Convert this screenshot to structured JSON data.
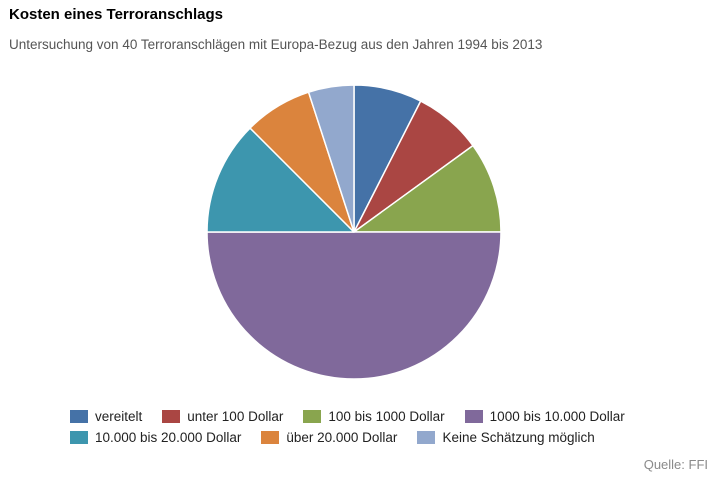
{
  "title": "Kosten eines Terroranschlags",
  "subtitle": "Untersuchung von 40 Terroranschlägen mit Europa-Bezug aus den Jahren 1994 bis 2013",
  "source": "Quelle: FFI",
  "chart_data": {
    "type": "pie",
    "title": "Kosten eines Terroranschlags",
    "subtitle": "Untersuchung von 40 Terroranschlägen mit Europa-Bezug aus den Jahren 1994 bis 2013",
    "categories": [
      "vereitelt",
      "unter 100 Dollar",
      "100 bis 1000 Dollar",
      "1000 bis 10.000 Dollar",
      "10.000 bis 20.000 Dollar",
      "über 20.000 Dollar",
      "Keine Schätzung möglich"
    ],
    "values": [
      3,
      3,
      4,
      20,
      5,
      3,
      2
    ],
    "colors": [
      "#4572a7",
      "#aa4643",
      "#89a54e",
      "#80699b",
      "#3d96ae",
      "#db843d",
      "#92a8cd"
    ],
    "legend_position": "bottom",
    "start_angle": "top, clockwise"
  }
}
